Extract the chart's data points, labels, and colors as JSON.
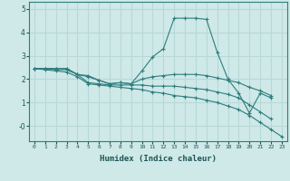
{
  "xlabel": "Humidex (Indice chaleur)",
  "ylabel": "",
  "background_color": "#cfe8e8",
  "grid_color": "#b8d8d8",
  "line_color": "#2e7d7d",
  "xlim": [
    -0.5,
    23.5
  ],
  "ylim": [
    -0.65,
    5.3
  ],
  "ytick_labels": [
    "-0",
    "1",
    "2",
    "3",
    "4",
    "5"
  ],
  "ytick_vals": [
    0,
    1,
    2,
    3,
    4,
    5
  ],
  "lines": [
    [
      2.45,
      2.45,
      2.45,
      2.45,
      2.2,
      2.15,
      1.95,
      1.8,
      1.85,
      1.8,
      2.35,
      2.95,
      3.3,
      4.6,
      4.6,
      4.6,
      4.55,
      3.15,
      2.0,
      1.4,
      0.55,
      1.4,
      1.2,
      null
    ],
    [
      2.45,
      2.45,
      2.45,
      2.45,
      2.2,
      2.1,
      1.95,
      1.8,
      1.85,
      1.8,
      2.0,
      2.1,
      2.15,
      2.2,
      2.2,
      2.2,
      2.15,
      2.05,
      1.95,
      1.85,
      1.65,
      1.5,
      1.3,
      null
    ],
    [
      2.45,
      2.45,
      2.4,
      2.4,
      2.2,
      1.85,
      1.8,
      1.75,
      1.75,
      1.75,
      1.75,
      1.7,
      1.7,
      1.7,
      1.65,
      1.6,
      1.55,
      1.45,
      1.35,
      1.2,
      0.9,
      0.6,
      0.3,
      null
    ],
    [
      2.45,
      2.4,
      2.35,
      2.3,
      2.1,
      1.8,
      1.75,
      1.7,
      1.65,
      1.6,
      1.55,
      1.45,
      1.4,
      1.3,
      1.25,
      1.2,
      1.1,
      1.0,
      0.85,
      0.7,
      0.45,
      0.15,
      -0.15,
      -0.45
    ]
  ]
}
